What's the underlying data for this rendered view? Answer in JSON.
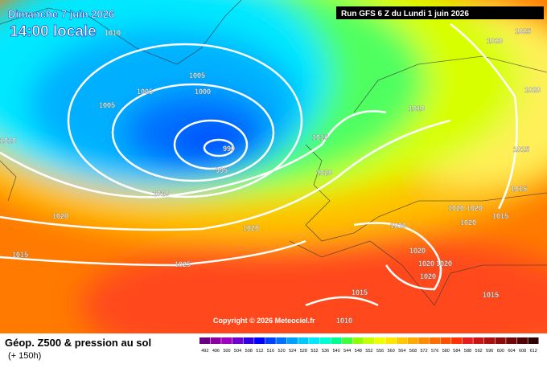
{
  "header": {
    "date": "Dimanche 7 juin 2026",
    "time": "14:00 locale",
    "run": "Run GFS 6 Z du Lundi 1 juin 2026"
  },
  "copyright": "Copyright © 2026 Meteociel.fr",
  "footer": {
    "title": "Géop. Z500 & pression au sol",
    "lead": "(+ 150h)"
  },
  "isobar_labels": [
    "1010",
    "1005",
    "1005",
    "1005",
    "1000",
    "990",
    "995",
    "1010",
    "1010",
    "1020",
    "1015",
    "1020",
    "1025",
    "1015",
    "1020",
    "1010",
    "1020",
    "1025",
    "1020",
    "1015",
    "1015",
    "1020",
    "1020",
    "1020",
    "1015",
    "1020",
    "1020",
    "1020",
    "1020",
    "1020",
    "1015",
    "1015",
    "1010"
  ],
  "legend": {
    "values": [
      492,
      496,
      500,
      504,
      508,
      512,
      516,
      520,
      524,
      528,
      532,
      536,
      540,
      544,
      548,
      552,
      556,
      560,
      564,
      568,
      572,
      576,
      580,
      584,
      588,
      592,
      596,
      600,
      604,
      608,
      612
    ],
    "colors": [
      "#6a0080",
      "#8a00a0",
      "#a000c0",
      "#7000d0",
      "#3000e0",
      "#0000ff",
      "#0040ff",
      "#0070ff",
      "#00a0ff",
      "#00c8ff",
      "#00e8ff",
      "#00ffd0",
      "#00ff90",
      "#40ff40",
      "#90ff00",
      "#c8ff00",
      "#f0ff00",
      "#ffe600",
      "#ffc800",
      "#ffaa00",
      "#ff8c00",
      "#ff6e00",
      "#ff5000",
      "#ff3200",
      "#e61e1e",
      "#c81414",
      "#aa1010",
      "#8c0c0c",
      "#6e0808",
      "#500404",
      "#300000"
    ]
  }
}
